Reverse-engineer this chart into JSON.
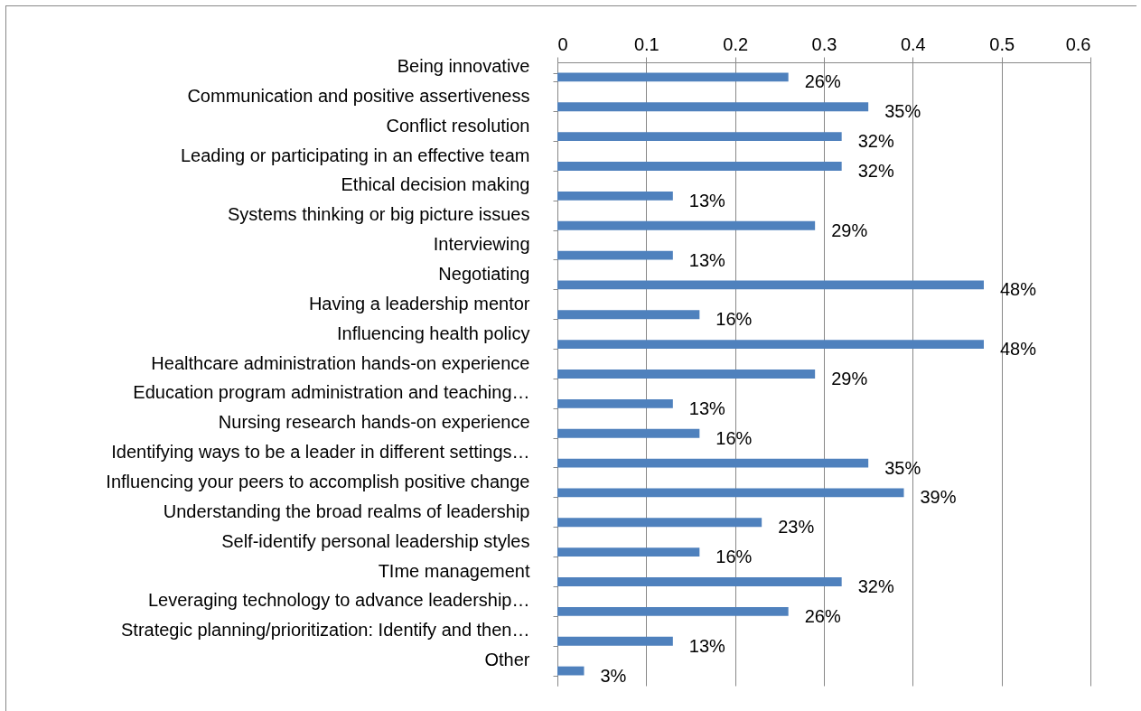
{
  "chart_data": {
    "type": "bar",
    "orientation": "horizontal",
    "categories": [
      "Being innovative",
      "Communication and positive assertiveness",
      "Conflict resolution",
      "Leading or participating in an effective team",
      "Ethical decision making",
      "Systems thinking or big picture issues",
      "Interviewing",
      "Negotiating",
      "Having a leadership mentor",
      "Influencing health policy",
      "Healthcare administration hands-on experience",
      "Education program administration and teaching…",
      "Nursing research hands-on experience",
      "Identifying ways to be a leader in different settings…",
      "Influencing your peers to accomplish positive change",
      "Understanding the broad realms of leadership",
      "Self-identify personal leadership styles",
      "TIme management",
      "Leveraging technology to advance leadership…",
      "Strategic planning/prioritization: Identify and then…",
      "Other"
    ],
    "values": [
      0.26,
      0.35,
      0.32,
      0.32,
      0.13,
      0.29,
      0.13,
      0.48,
      0.16,
      0.48,
      0.29,
      0.13,
      0.16,
      0.35,
      0.39,
      0.23,
      0.16,
      0.32,
      0.26,
      0.13,
      0.03
    ],
    "value_labels": [
      "26%",
      "35%",
      "32%",
      "32%",
      "13%",
      "29%",
      "13%",
      "48%",
      "16%",
      "48%",
      "29%",
      "13%",
      "16%",
      "35%",
      "39%",
      "23%",
      "16%",
      "32%",
      "26%",
      "13%",
      "3%"
    ],
    "color": "#4f81bd",
    "xlim": [
      0,
      0.6
    ],
    "xticks": [
      0,
      0.1,
      0.2,
      0.3,
      0.4,
      0.5,
      0.6
    ],
    "grid": "x"
  }
}
